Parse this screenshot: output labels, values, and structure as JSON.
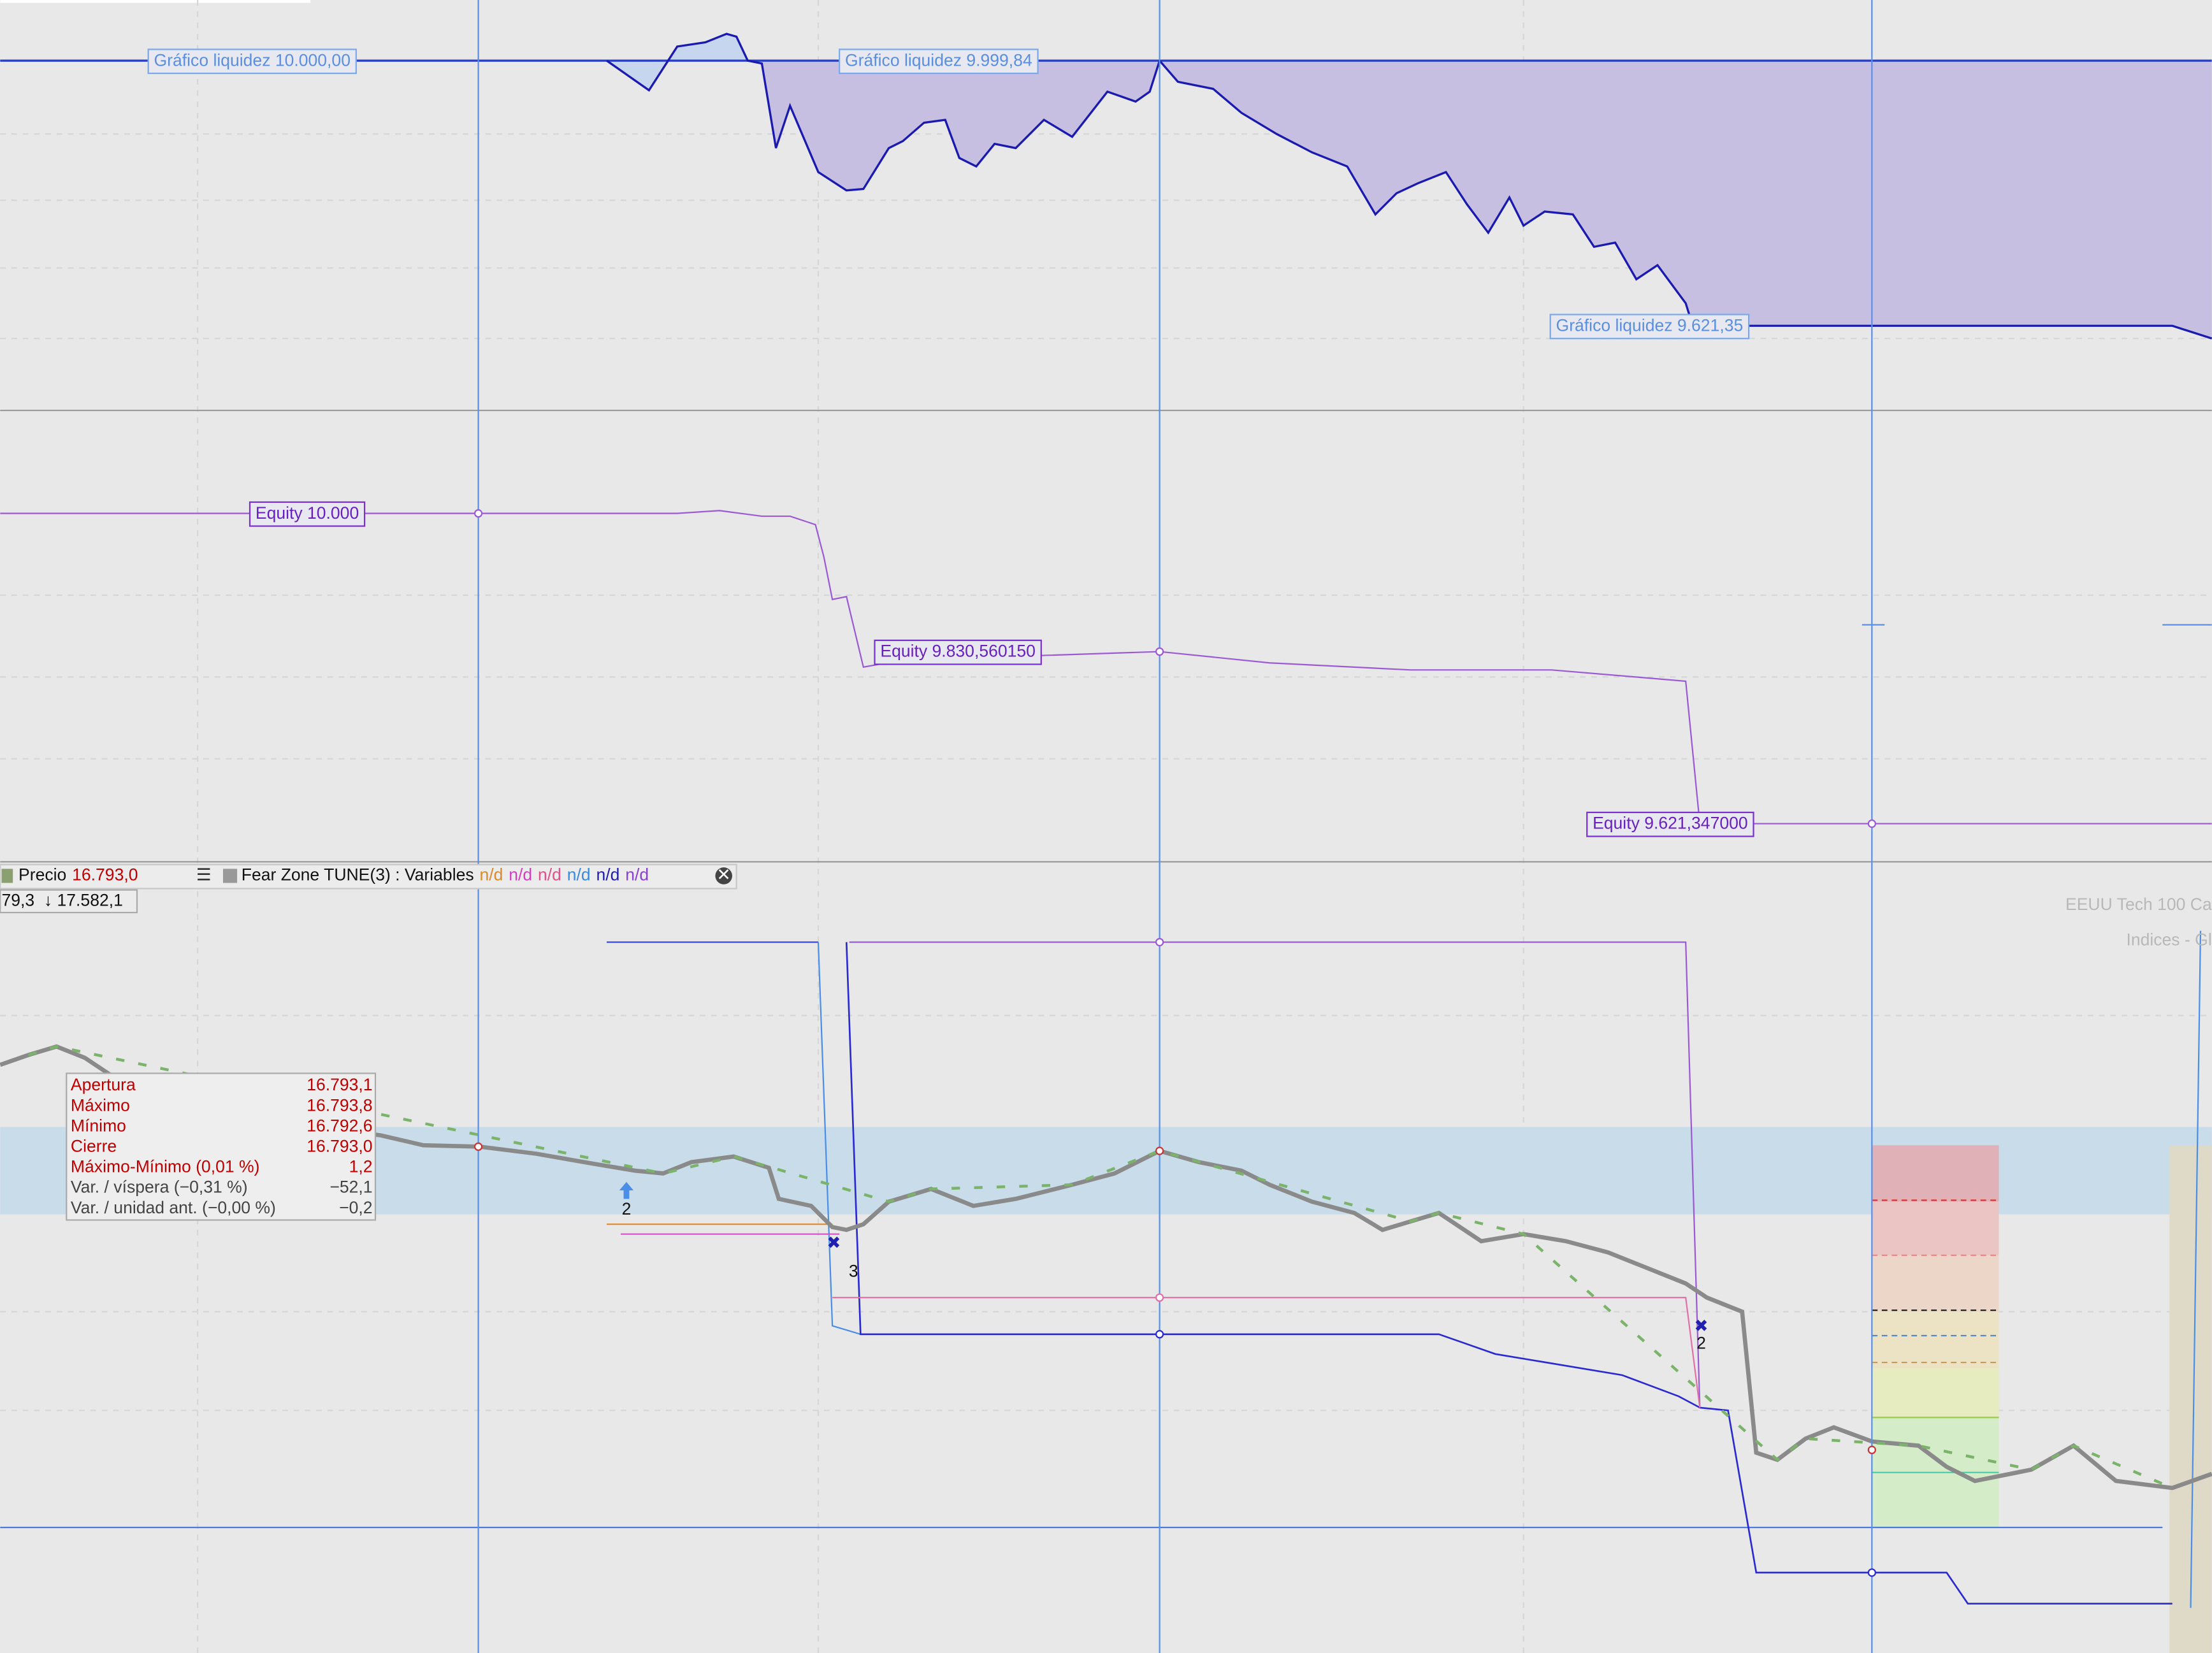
{
  "liquidity_panel": {
    "labels": [
      "Gráfico liquidez  10.000,00",
      "Gráfico liquidez  9.999,84",
      "Gráfico liquidez  9.621,35"
    ]
  },
  "equity_panel": {
    "labels": [
      "Equity  10.000",
      "Equity  9.830,560150",
      "Equity  9.621,347000"
    ]
  },
  "price_panel": {
    "toolbar": {
      "price_label": "Precio",
      "price_value": "16.793,0",
      "indicator": "Fear Zone TUNE(3) : Variables",
      "indicator_values": [
        "n/d",
        "n/d",
        "n/d",
        "n/d",
        "n/d",
        "n/d"
      ]
    },
    "range": {
      "low": "79,3",
      "high": "↓ 17.582,1"
    },
    "watermark": [
      "EEUU Tech 100 Ca",
      "Indices - Gl"
    ],
    "tooltip": {
      "rows": [
        [
          "Apertura",
          "16.793,1"
        ],
        [
          "Máximo",
          "16.793,8"
        ],
        [
          "Mínimo",
          "16.792,6"
        ],
        [
          "Cierre",
          "16.793,0"
        ],
        [
          "Máximo-Mínimo (0,01 %)",
          "1,2"
        ],
        [
          "Var. / víspera (−0,31 %)",
          "−52,1"
        ],
        [
          "Var. / unidad ant. (−0,00 %)",
          "−0,2"
        ]
      ]
    },
    "signals": [
      "2",
      "3",
      "2"
    ]
  }
}
